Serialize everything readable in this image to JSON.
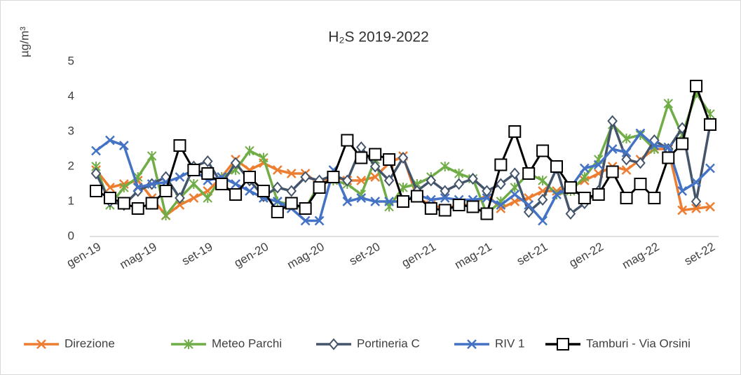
{
  "chart_data": {
    "type": "line",
    "title": "H₂S 2019-2022",
    "y_label": "µg/m³",
    "categories": [
      "gen-19",
      null,
      null,
      null,
      "mag-19",
      null,
      null,
      null,
      "set-19",
      null,
      null,
      null,
      "gen-20",
      null,
      null,
      null,
      "mag-20",
      null,
      null,
      null,
      "set-20",
      null,
      null,
      null,
      "gen-21",
      null,
      null,
      null,
      "mag-21",
      null,
      null,
      null,
      "set-21",
      null,
      null,
      null,
      "gen-22",
      null,
      null,
      null,
      "mag-22",
      null,
      null,
      null,
      "set-22"
    ],
    "ylim": [
      0,
      5
    ],
    "yticks": [
      0,
      1,
      2,
      3,
      4,
      5
    ],
    "grid": false,
    "legend": "bottom",
    "series": [
      {
        "name": "Direzione",
        "color": "#ed7d31",
        "marker": "x",
        "values": [
          1.9,
          1.4,
          1.5,
          1.6,
          1.1,
          0.6,
          0.9,
          1.1,
          1.3,
          1.7,
          2.2,
          1.9,
          2.1,
          1.9,
          1.8,
          1.8,
          1.5,
          1.7,
          1.6,
          1.6,
          1.7,
          2.1,
          2.3,
          1.1,
          0.9,
          0.8,
          0.9,
          0.9,
          1.2,
          0.8,
          1.0,
          1.1,
          1.3,
          1.3,
          1.4,
          1.6,
          1.8,
          2.0,
          1.9,
          2.2,
          2.5,
          2.5,
          0.75,
          0.8,
          0.85
        ]
      },
      {
        "name": "Meteo Parchi",
        "color": "#70ad47",
        "marker": "asterisk",
        "values": [
          2.0,
          0.9,
          1.4,
          1.7,
          2.3,
          0.6,
          1.1,
          1.5,
          1.1,
          1.7,
          1.9,
          2.45,
          2.25,
          1.0,
          0.9,
          0.8,
          1.5,
          1.6,
          1.5,
          1.2,
          2.2,
          0.85,
          1.4,
          1.5,
          1.7,
          2.0,
          1.8,
          1.65,
          0.65,
          1.0,
          1.4,
          1.8,
          1.6,
          1.2,
          1.3,
          1.7,
          2.2,
          3.2,
          2.8,
          2.9,
          2.5,
          3.8,
          2.9,
          4.1,
          3.5
        ]
      },
      {
        "name": "Portineria C",
        "color": "#44546a",
        "marker": "diamond",
        "values": [
          1.8,
          1.0,
          0.9,
          1.3,
          1.5,
          1.7,
          1.1,
          2.0,
          2.15,
          1.5,
          2.1,
          1.6,
          1.15,
          1.4,
          1.3,
          1.7,
          1.6,
          1.75,
          1.6,
          2.55,
          2.0,
          1.6,
          2.25,
          1.3,
          1.6,
          1.3,
          1.5,
          1.65,
          1.3,
          1.5,
          1.8,
          0.7,
          1.05,
          1.95,
          0.65,
          0.95,
          1.3,
          3.3,
          2.2,
          2.1,
          2.75,
          2.5,
          3.1,
          1.0,
          3.2
        ]
      },
      {
        "name": "RIV 1",
        "color": "#4472c4",
        "marker": "x",
        "values": [
          2.45,
          2.75,
          2.6,
          1.4,
          1.5,
          1.55,
          1.7,
          1.9,
          1.6,
          1.7,
          1.5,
          1.3,
          1.1,
          1.0,
          0.8,
          0.45,
          0.45,
          1.9,
          1.0,
          1.1,
          1.0,
          1.0,
          1.0,
          1.2,
          1.05,
          1.1,
          1.05,
          1.05,
          1.1,
          0.9,
          1.2,
          0.9,
          0.45,
          1.2,
          1.4,
          1.95,
          2.05,
          2.5,
          2.4,
          2.95,
          2.6,
          2.55,
          1.3,
          1.55,
          1.95
        ]
      },
      {
        "name": "Tamburi - Via Orsini",
        "color": "#000000",
        "marker": "square",
        "values": [
          1.3,
          1.1,
          0.95,
          0.8,
          0.95,
          1.3,
          2.6,
          1.9,
          1.8,
          1.5,
          1.2,
          1.7,
          1.3,
          0.7,
          0.95,
          0.8,
          1.4,
          1.7,
          2.75,
          2.25,
          2.35,
          2.2,
          1.0,
          1.15,
          0.8,
          0.75,
          0.9,
          0.85,
          0.65,
          2.05,
          3.0,
          1.8,
          2.45,
          2.0,
          1.4,
          1.1,
          1.2,
          1.85,
          1.1,
          1.5,
          1.1,
          2.25,
          2.65,
          4.3,
          3.2
        ]
      }
    ]
  }
}
